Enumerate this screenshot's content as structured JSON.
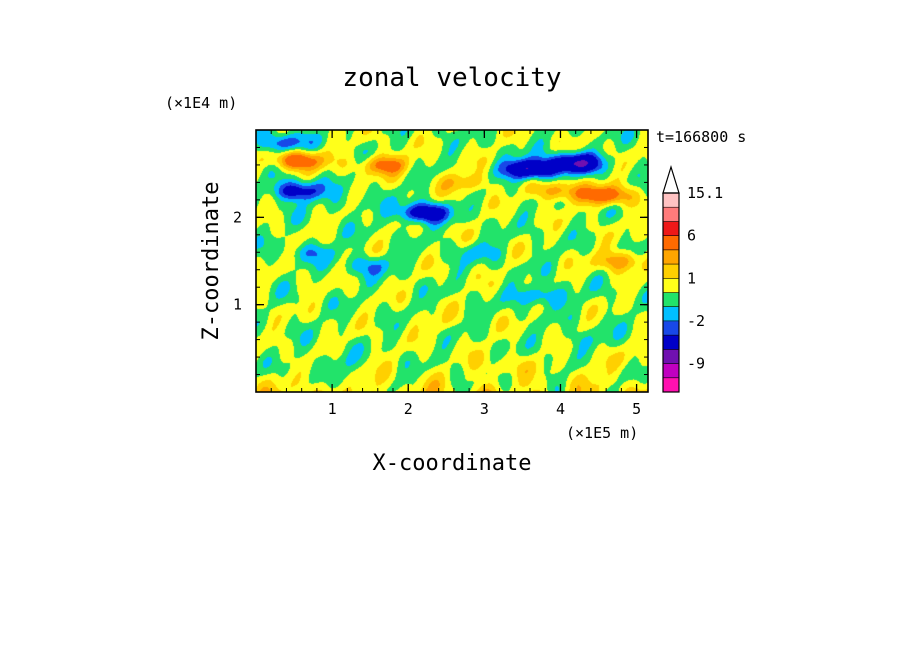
{
  "chart_data": {
    "type": "heatmap",
    "title": "zonal velocity",
    "xlabel": "X-coordinate",
    "ylabel": "Z-coordinate",
    "x_unit": "(×1E5 m)",
    "y_unit": "(×1E4 m)",
    "time_label": "t=166800 s",
    "xlim": [
      0,
      5.15
    ],
    "ylim": [
      0,
      3.0
    ],
    "x_ticks": [
      1,
      2,
      3,
      4,
      5
    ],
    "y_ticks": [
      1,
      2
    ],
    "colorbar": {
      "levels": [
        -15,
        -12,
        -9,
        -6,
        -3,
        -2,
        -1,
        0,
        1,
        2,
        3,
        6,
        9,
        12,
        15.1
      ],
      "colors": [
        "#ff10b0",
        "#c000c0",
        "#7010b0",
        "#0000c8",
        "#1848e8",
        "#00bfff",
        "#22e36a",
        "#ffff1a",
        "#ffd000",
        "#ffa500",
        "#ff6a00",
        "#ee1818",
        "#ff7b7b",
        "#ffc2c2"
      ],
      "tick_labels": [
        "15.1",
        "6",
        "1",
        "-2",
        "-9"
      ],
      "extend": "max"
    },
    "field_features": [
      {
        "x": 2.35,
        "z": 0.8,
        "value": 0.6
      },
      {
        "x": 4.3,
        "z": 0.6,
        "value": -1.0
      },
      {
        "x": 1.0,
        "z": 0.35,
        "value": -1.0
      },
      {
        "x": 3.6,
        "z": 2.55,
        "value": -6.5
      },
      {
        "x": 4.2,
        "z": 2.62,
        "value": -6.0
      },
      {
        "x": 0.35,
        "z": 2.85,
        "value": -3.0
      },
      {
        "x": 0.55,
        "z": 2.3,
        "value": -4.5
      },
      {
        "x": 2.2,
        "z": 2.05,
        "value": -5.0
      },
      {
        "x": 0.55,
        "z": 2.65,
        "value": 4.5
      },
      {
        "x": 1.7,
        "z": 2.6,
        "value": 3.5
      },
      {
        "x": 3.95,
        "z": 2.3,
        "value": 3.0
      },
      {
        "x": 4.6,
        "z": 2.25,
        "value": 4.5
      },
      {
        "x": 4.8,
        "z": 1.5,
        "value": 3.0
      },
      {
        "x": 0.75,
        "z": 1.6,
        "value": -1.5
      },
      {
        "x": 1.5,
        "z": 1.45,
        "value": -1.8
      },
      {
        "x": 3.75,
        "z": 1.1,
        "value": -2.5
      },
      {
        "x": 2.9,
        "z": 1.6,
        "value": -1.2
      },
      {
        "x": 3.2,
        "z": 0.3,
        "value": 0.8
      },
      {
        "x": 4.6,
        "z": 0.35,
        "value": 0.6
      },
      {
        "x": 2.75,
        "z": 2.4,
        "value": 2.0
      },
      {
        "x": 1.25,
        "z": 2.15,
        "value": -0.8
      }
    ]
  }
}
